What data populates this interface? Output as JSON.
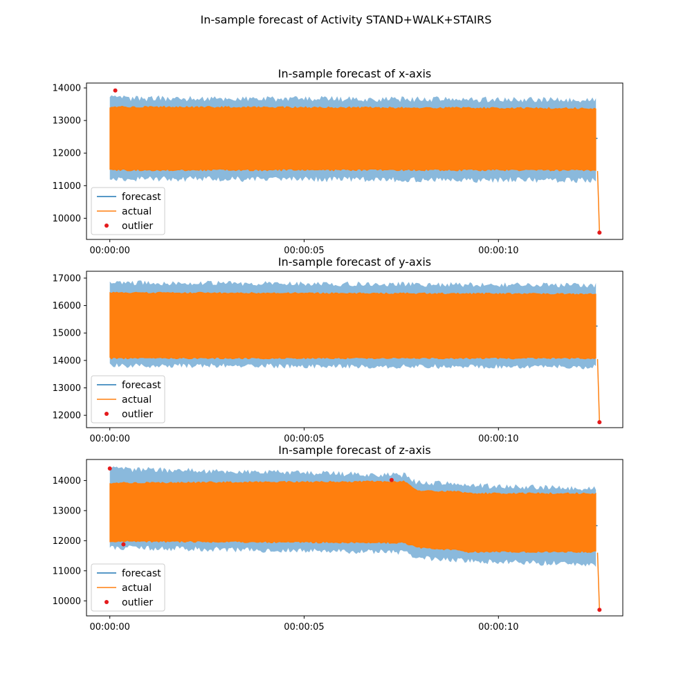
{
  "suptitle": "In-sample forecast of Activity STAND+WALK+STAIRS",
  "legend_labels": {
    "forecast": "forecast",
    "actual": "actual",
    "outlier": "outlier"
  },
  "colors": {
    "forecast": "#1f77b4",
    "actual": "#ff7f0e",
    "band": "#8ab9dc",
    "outlier": "#e41a1c"
  },
  "chart_data": [
    {
      "type": "line",
      "title": "In-sample forecast of x-axis",
      "x_tick_labels": [
        "00:00:00",
        "00:00:05",
        "00:00:10"
      ],
      "x_ticks_seconds": [
        0,
        5,
        10
      ],
      "xlim_seconds": [
        -0.6,
        13.2
      ],
      "ylim": [
        9350,
        14150
      ],
      "y_ticks": [
        10000,
        11000,
        12000,
        13000,
        14000
      ],
      "legend": "lower-left",
      "series": [
        {
          "name": "forecast",
          "x_seconds": [
            0,
            12.55
          ],
          "values": [
            12500,
            12450
          ]
        },
        {
          "name": "actual",
          "x_seconds": [
            0,
            12.55
          ],
          "low": [
            11450,
            11450
          ],
          "high": [
            13450,
            13400
          ],
          "end_value": 9560
        },
        {
          "name": "forecast band",
          "x_seconds": [
            0,
            12.55
          ],
          "low": [
            11250,
            11200
          ],
          "high": [
            13650,
            13600
          ]
        },
        {
          "name": "outlier",
          "x_seconds": [
            0.14,
            12.6
          ],
          "values": [
            13920,
            9560
          ]
        }
      ]
    },
    {
      "type": "line",
      "title": "In-sample forecast of y-axis",
      "x_tick_labels": [
        "00:00:00",
        "00:00:05",
        "00:00:10"
      ],
      "x_ticks_seconds": [
        0,
        5,
        10
      ],
      "xlim_seconds": [
        -0.6,
        13.2
      ],
      "ylim": [
        11550,
        17250
      ],
      "y_ticks": [
        12000,
        13000,
        14000,
        15000,
        16000,
        17000
      ],
      "legend": "lower-left",
      "series": [
        {
          "name": "forecast",
          "x_seconds": [
            0,
            12.55
          ],
          "values": [
            15300,
            15250
          ]
        },
        {
          "name": "actual",
          "x_seconds": [
            0,
            12.55
          ],
          "low": [
            14050,
            14050
          ],
          "high": [
            16500,
            16450
          ],
          "end_value": 11750
        },
        {
          "name": "forecast band",
          "x_seconds": [
            0,
            12.55
          ],
          "low": [
            13850,
            13800
          ],
          "high": [
            16800,
            16700
          ]
        },
        {
          "name": "outlier",
          "x_seconds": [
            12.6
          ],
          "values": [
            11750
          ]
        }
      ]
    },
    {
      "type": "line",
      "title": "In-sample forecast of z-axis",
      "x_tick_labels": [
        "00:00:00",
        "00:00:05",
        "00:00:10"
      ],
      "x_ticks_seconds": [
        0,
        5,
        10
      ],
      "xlim_seconds": [
        -0.6,
        13.2
      ],
      "ylim": [
        9500,
        14700
      ],
      "y_ticks": [
        10000,
        11000,
        12000,
        13000,
        14000
      ],
      "legend": "lower-left",
      "series": [
        {
          "name": "forecast",
          "x_seconds": [
            0,
            12.55
          ],
          "values": [
            13050,
            12500
          ]
        },
        {
          "name": "actual",
          "x_seconds": [
            0,
            7.6,
            7.9,
            9.0,
            9.2,
            12.55
          ],
          "low": [
            11950,
            11900,
            11750,
            11650,
            11600,
            11600
          ],
          "high": [
            13950,
            14000,
            13700,
            13650,
            13600,
            13600
          ],
          "end_value": 9700
        },
        {
          "name": "forecast band",
          "x_seconds": [
            0,
            7.6,
            7.9,
            9.0,
            9.2,
            12.55
          ],
          "low": [
            11800,
            11650,
            11450,
            11400,
            11350,
            11250
          ],
          "high": [
            14350,
            14150,
            13900,
            13850,
            13800,
            13700
          ]
        },
        {
          "name": "outlier",
          "x_seconds": [
            0.0,
            0.35,
            7.25,
            12.6
          ],
          "values": [
            14400,
            11880,
            14020,
            9700
          ]
        }
      ]
    }
  ]
}
